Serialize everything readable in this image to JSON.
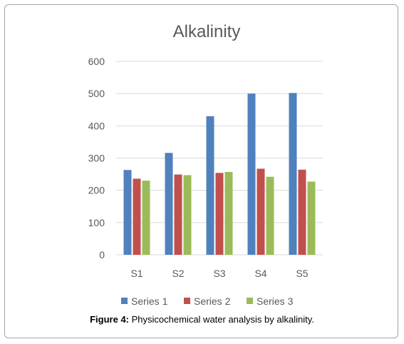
{
  "caption": {
    "label": "Figure 4:",
    "text": " Physicochemical water analysis by alkalinity."
  },
  "chart_data": {
    "type": "bar",
    "title": "Alkalinity",
    "xlabel": "",
    "ylabel": "",
    "categories": [
      "S1",
      "S2",
      "S3",
      "S4",
      "S5"
    ],
    "ylim": [
      0,
      600
    ],
    "yticks": [
      0,
      100,
      200,
      300,
      400,
      500,
      600
    ],
    "grid": true,
    "legend_position": "bottom",
    "series": [
      {
        "name": "Series 1",
        "color": "#4f81bd",
        "values": [
          263,
          316,
          430,
          500,
          502
        ]
      },
      {
        "name": "Series 2",
        "color": "#c0504d",
        "values": [
          236,
          249,
          254,
          267,
          264
        ]
      },
      {
        "name": "Series 3",
        "color": "#9bbb59",
        "values": [
          230,
          247,
          257,
          242,
          227
        ]
      }
    ]
  }
}
